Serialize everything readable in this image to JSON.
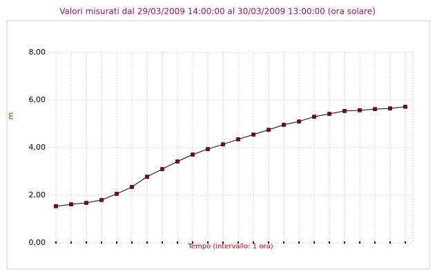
{
  "chart_data": {
    "type": "line",
    "title": "Valori  misurati   dal  29/03/2009 14:00:00   al  30/03/2009 13:00:00  (ora  solare)",
    "x_label": "Tempo (intervallo: 1 ora)",
    "y_label": "m",
    "categories": [
      null,
      null,
      null,
      null,
      null,
      null,
      null,
      null,
      null,
      null,
      null,
      null,
      null,
      null,
      null,
      null,
      null,
      null,
      null,
      null,
      null,
      null,
      null,
      null
    ],
    "series": [
      {
        "color": "#8b0000",
        "values": [
          1.54,
          1.62,
          1.68,
          1.8,
          2.06,
          2.35,
          2.78,
          3.1,
          3.42,
          3.71,
          3.94,
          4.14,
          4.35,
          4.55,
          4.75,
          4.96,
          5.1,
          5.3,
          5.42,
          5.54,
          5.57,
          5.62,
          5.65,
          5.72
        ]
      }
    ],
    "ylim": [
      0,
      8
    ],
    "yticks": [
      {
        "value": 0,
        "label": "0,00"
      },
      {
        "value": 2,
        "label": "2,00"
      },
      {
        "value": 4,
        "label": "4,00"
      },
      {
        "value": 6,
        "label": "6,00"
      },
      {
        "value": 8,
        "label": "8,00"
      }
    ],
    "grid": true
  }
}
